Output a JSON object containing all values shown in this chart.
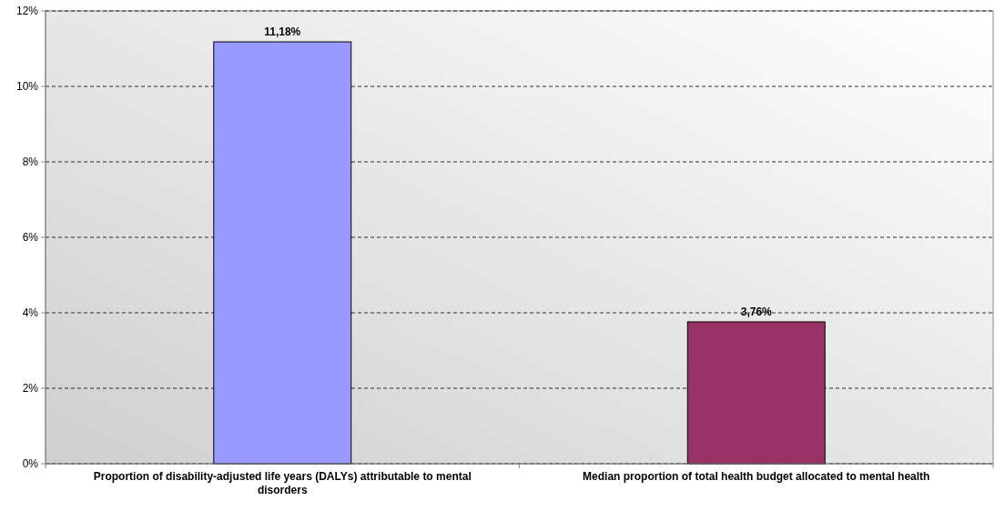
{
  "chart_data": {
    "type": "bar",
    "categories": [
      "Proportion of disability-adjusted life years (DALYs) attributable to mental disorders",
      "Median proportion of total health budget allocated to mental health"
    ],
    "values": [
      11.18,
      3.76
    ],
    "colors": [
      "#9999ff",
      "#993366"
    ],
    "value_labels": [
      "11,18%",
      "3,76%"
    ],
    "ylim": [
      0,
      12
    ],
    "yticks": [
      {
        "value": 0,
        "label": "0%"
      },
      {
        "value": 2,
        "label": "2%"
      },
      {
        "value": 4,
        "label": "4%"
      },
      {
        "value": 6,
        "label": "6%"
      },
      {
        "value": 8,
        "label": "8%"
      },
      {
        "value": 10,
        "label": "10%"
      },
      {
        "value": 12,
        "label": "12%"
      }
    ],
    "grid": "y"
  }
}
